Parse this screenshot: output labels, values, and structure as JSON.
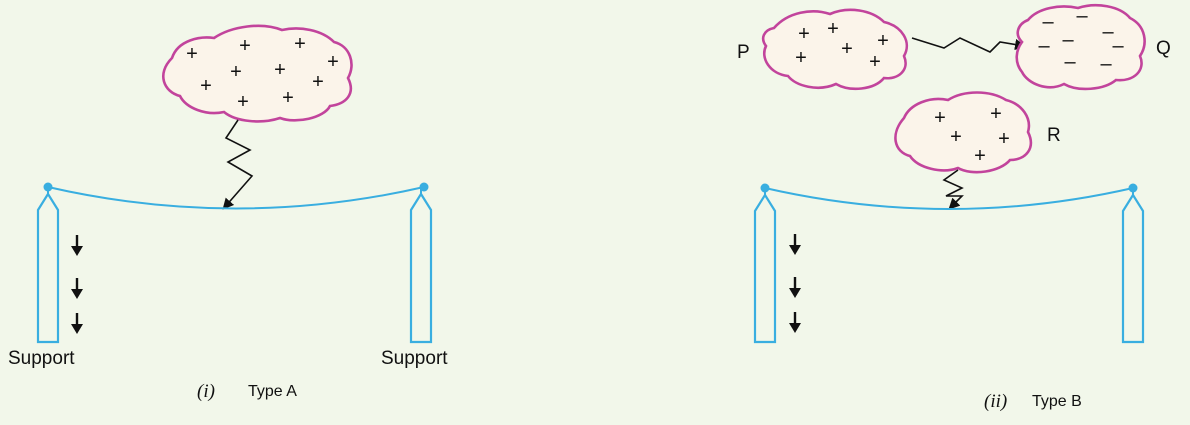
{
  "symbols": {
    "positive": "+",
    "negative": "–"
  },
  "type_a": {
    "left_support_label": "Support",
    "right_support_label": "Support",
    "caption_roman": "(i)",
    "caption_text": "Type A"
  },
  "type_b": {
    "cloud_p_label": "P",
    "cloud_q_label": "Q",
    "cloud_r_label": "R",
    "caption_roman": "(ii)",
    "caption_text": "Type B"
  },
  "colors": {
    "background": "#f2f7ea",
    "cloud_outline": "#c2449c",
    "cloud_fill": "#fbf4ea",
    "line_and_pole": "#39aee0",
    "bolt_and_arrow": "#111111"
  }
}
